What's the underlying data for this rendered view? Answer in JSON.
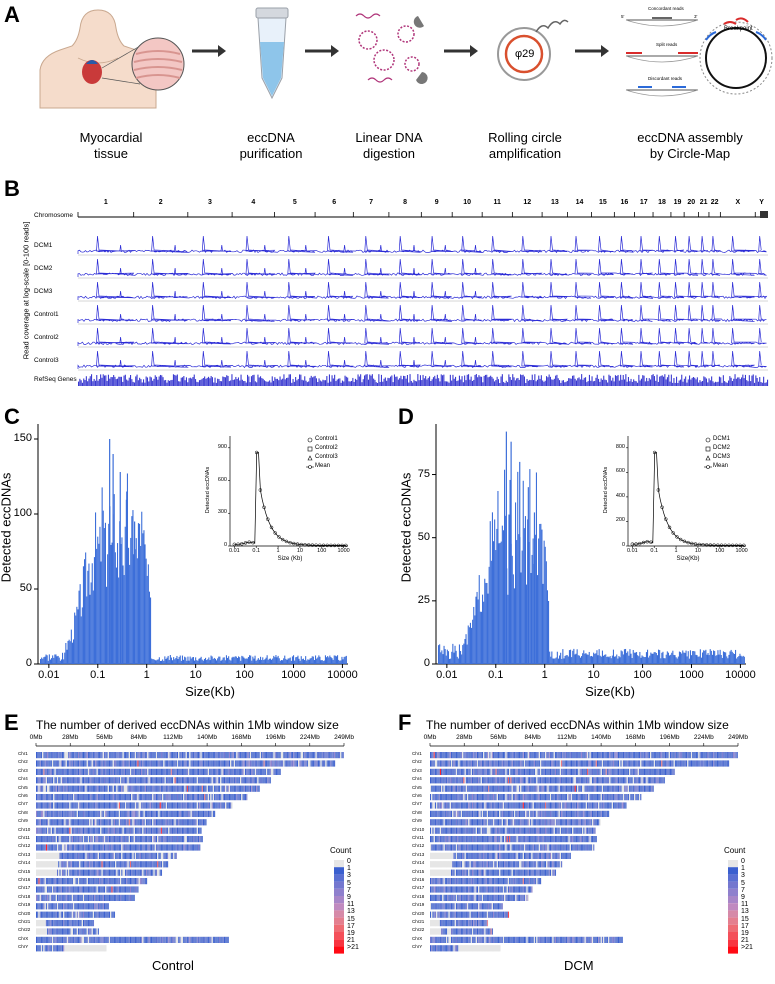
{
  "panelA": {
    "label": "A",
    "steps": [
      {
        "line1": "Myocardial",
        "line2": "tissue"
      },
      {
        "line1": "eccDNA",
        "line2": "purification"
      },
      {
        "line1": "Linear DNA",
        "line2": "digestion"
      },
      {
        "line1": "Rolling circle",
        "line2": "amplification"
      },
      {
        "line1": "eccDNA assembly",
        "line2": "by Circle-Map"
      }
    ],
    "phi_label": "φ29",
    "reads": {
      "concordant": "Concordant reads",
      "split": "Split reads",
      "discordant": "Discordant reads",
      "five": "5'",
      "three": "3'",
      "breakpoint": "Breakpoint"
    }
  },
  "panelB": {
    "label": "B",
    "ylabel": "Read coverage at log-scale [0-100 reads]",
    "chromosome_label": "Chromosome",
    "chromosomes": [
      "1",
      "2",
      "3",
      "4",
      "5",
      "6",
      "7",
      "8",
      "9",
      "10",
      "11",
      "12",
      "13",
      "14",
      "15",
      "16",
      "17",
      "18",
      "19",
      "20",
      "21",
      "22",
      "X",
      "Y"
    ],
    "tracks": [
      "DCM1",
      "DCM2",
      "DCM3",
      "Control1",
      "Control2",
      "Control3"
    ],
    "refseq_label": "RefSeq Genes",
    "line_color": "#2b2bd6",
    "refseq_color": "#3a3ad0"
  },
  "panelC": {
    "label": "C",
    "ylabel": "Detected eccDNAs",
    "xlabel": "Size(Kb)",
    "inset": {
      "ylabel": "Detected eccDNAs",
      "xlabel": "Size (Kb)",
      "legend": [
        "Control1",
        "Control2",
        "Control3",
        "Mean"
      ],
      "yticks": [
        "0",
        "300",
        "600",
        "900"
      ],
      "xticks": [
        "0.01",
        "0.1",
        "1",
        "10",
        "100",
        "1000"
      ]
    }
  },
  "panelD": {
    "label": "D",
    "ylabel": "Detected eccDNAs",
    "xlabel": "Size(Kb)",
    "inset": {
      "ylabel": "Detected eccDNAs",
      "xlabel": "Size(Kb)",
      "legend": [
        "DCM1",
        "DCM2",
        "DCM3",
        "Mean"
      ],
      "yticks": [
        "0",
        "200",
        "400",
        "600",
        "800"
      ],
      "xticks": [
        "0.01",
        "0.1",
        "1",
        "10",
        "100",
        "1000"
      ]
    }
  },
  "chart_data": [
    {
      "type": "bar",
      "panel": "C",
      "title": "",
      "xlabel": "Size(Kb)",
      "ylabel": "Detected eccDNAs",
      "x_scale": "log",
      "xlim": [
        0.006,
        13000
      ],
      "ylim": [
        0,
        160
      ],
      "xticks": [
        "0.01",
        "0.1",
        "1",
        "10",
        "100",
        "1000",
        "10000"
      ],
      "yticks": [
        "0",
        "50",
        "100",
        "150"
      ],
      "peaks": [
        {
          "x": 0.17,
          "y": 150
        },
        {
          "x": 0.2,
          "y": 140
        },
        {
          "x": 0.28,
          "y": 128
        },
        {
          "x": 0.38,
          "y": 115
        },
        {
          "x": 0.55,
          "y": 95
        }
      ],
      "color": "#3d6fd9"
    },
    {
      "type": "bar",
      "panel": "D",
      "title": "",
      "xlabel": "Size(Kb)",
      "ylabel": "Detected eccDNAs",
      "x_scale": "log",
      "xlim": [
        0.006,
        13000
      ],
      "ylim": [
        0,
        95
      ],
      "xticks": [
        "0.01",
        "0.1",
        "1",
        "10",
        "100",
        "1000",
        "10000"
      ],
      "yticks": [
        "0",
        "25",
        "50",
        "75"
      ],
      "peaks": [
        {
          "x": 0.16,
          "y": 92
        },
        {
          "x": 0.2,
          "y": 88
        },
        {
          "x": 0.3,
          "y": 80
        },
        {
          "x": 0.45,
          "y": 70
        },
        {
          "x": 0.6,
          "y": 60
        }
      ],
      "color": "#3d6fd9"
    }
  ],
  "panelE": {
    "label": "E",
    "title": "The number of derived eccDNAs within 1Mb window size",
    "xticks": [
      "0Mb",
      "28Mb",
      "56Mb",
      "84Mb",
      "112Mb",
      "140Mb",
      "168Mb",
      "196Mb",
      "224Mb",
      "249Mb"
    ],
    "rows": [
      "Chr1",
      "Chr2",
      "Chr3",
      "Chr4",
      "Chr5",
      "Chr6",
      "Chr7",
      "Chr8",
      "Chr9",
      "Chr10",
      "Chr11",
      "Chr12",
      "Chr13",
      "Chr14",
      "Chr15",
      "Chr16",
      "Chr17",
      "Chr18",
      "Chr19",
      "Chr20",
      "Chr21",
      "Chr22",
      "ChrX",
      "ChrY"
    ],
    "caption": "Control",
    "legend_title": "Count",
    "legend": [
      "0",
      "1",
      "3",
      "5",
      "7",
      "9",
      "11",
      "13",
      "15",
      "17",
      "19",
      "21",
      ">21"
    ]
  },
  "panelF": {
    "label": "F",
    "title": "The number of derived eccDNAs within 1Mb window size",
    "xticks": [
      "0Mb",
      "28Mb",
      "56Mb",
      "84Mb",
      "112Mb",
      "140Mb",
      "168Mb",
      "196Mb",
      "224Mb",
      "249Mb"
    ],
    "rows": [
      "Chr1",
      "Chr2",
      "Chr3",
      "Chr4",
      "Chr5",
      "Chr6",
      "Chr7",
      "Chr8",
      "Chr9",
      "Chr10",
      "Chr11",
      "Chr12",
      "Chr13",
      "Chr14",
      "Chr15",
      "Chr16",
      "Chr17",
      "Chr18",
      "Chr19",
      "Chr20",
      "Chr21",
      "Chr22",
      "ChrX",
      "ChrY"
    ],
    "caption": "DCM",
    "legend_title": "Count",
    "legend": [
      "0",
      "1",
      "3",
      "5",
      "7",
      "9",
      "11",
      "13",
      "15",
      "17",
      "19",
      "21",
      ">21"
    ]
  },
  "legend_colors": [
    "#e6e6e6",
    "#3a5fcf",
    "#5a6fd2",
    "#7477cf",
    "#8f80cd",
    "#a886c8",
    "#c08ac0",
    "#d68aa8",
    "#e47f8f",
    "#ee6c74",
    "#f4505a",
    "#f83540",
    "#ff0a14"
  ],
  "chromosome_lengths_mb": [
    249,
    242,
    198,
    190,
    181,
    171,
    159,
    145,
    138,
    134,
    135,
    133,
    114,
    107,
    102,
    90,
    83,
    80,
    59,
    64,
    47,
    51,
    156,
    57
  ]
}
